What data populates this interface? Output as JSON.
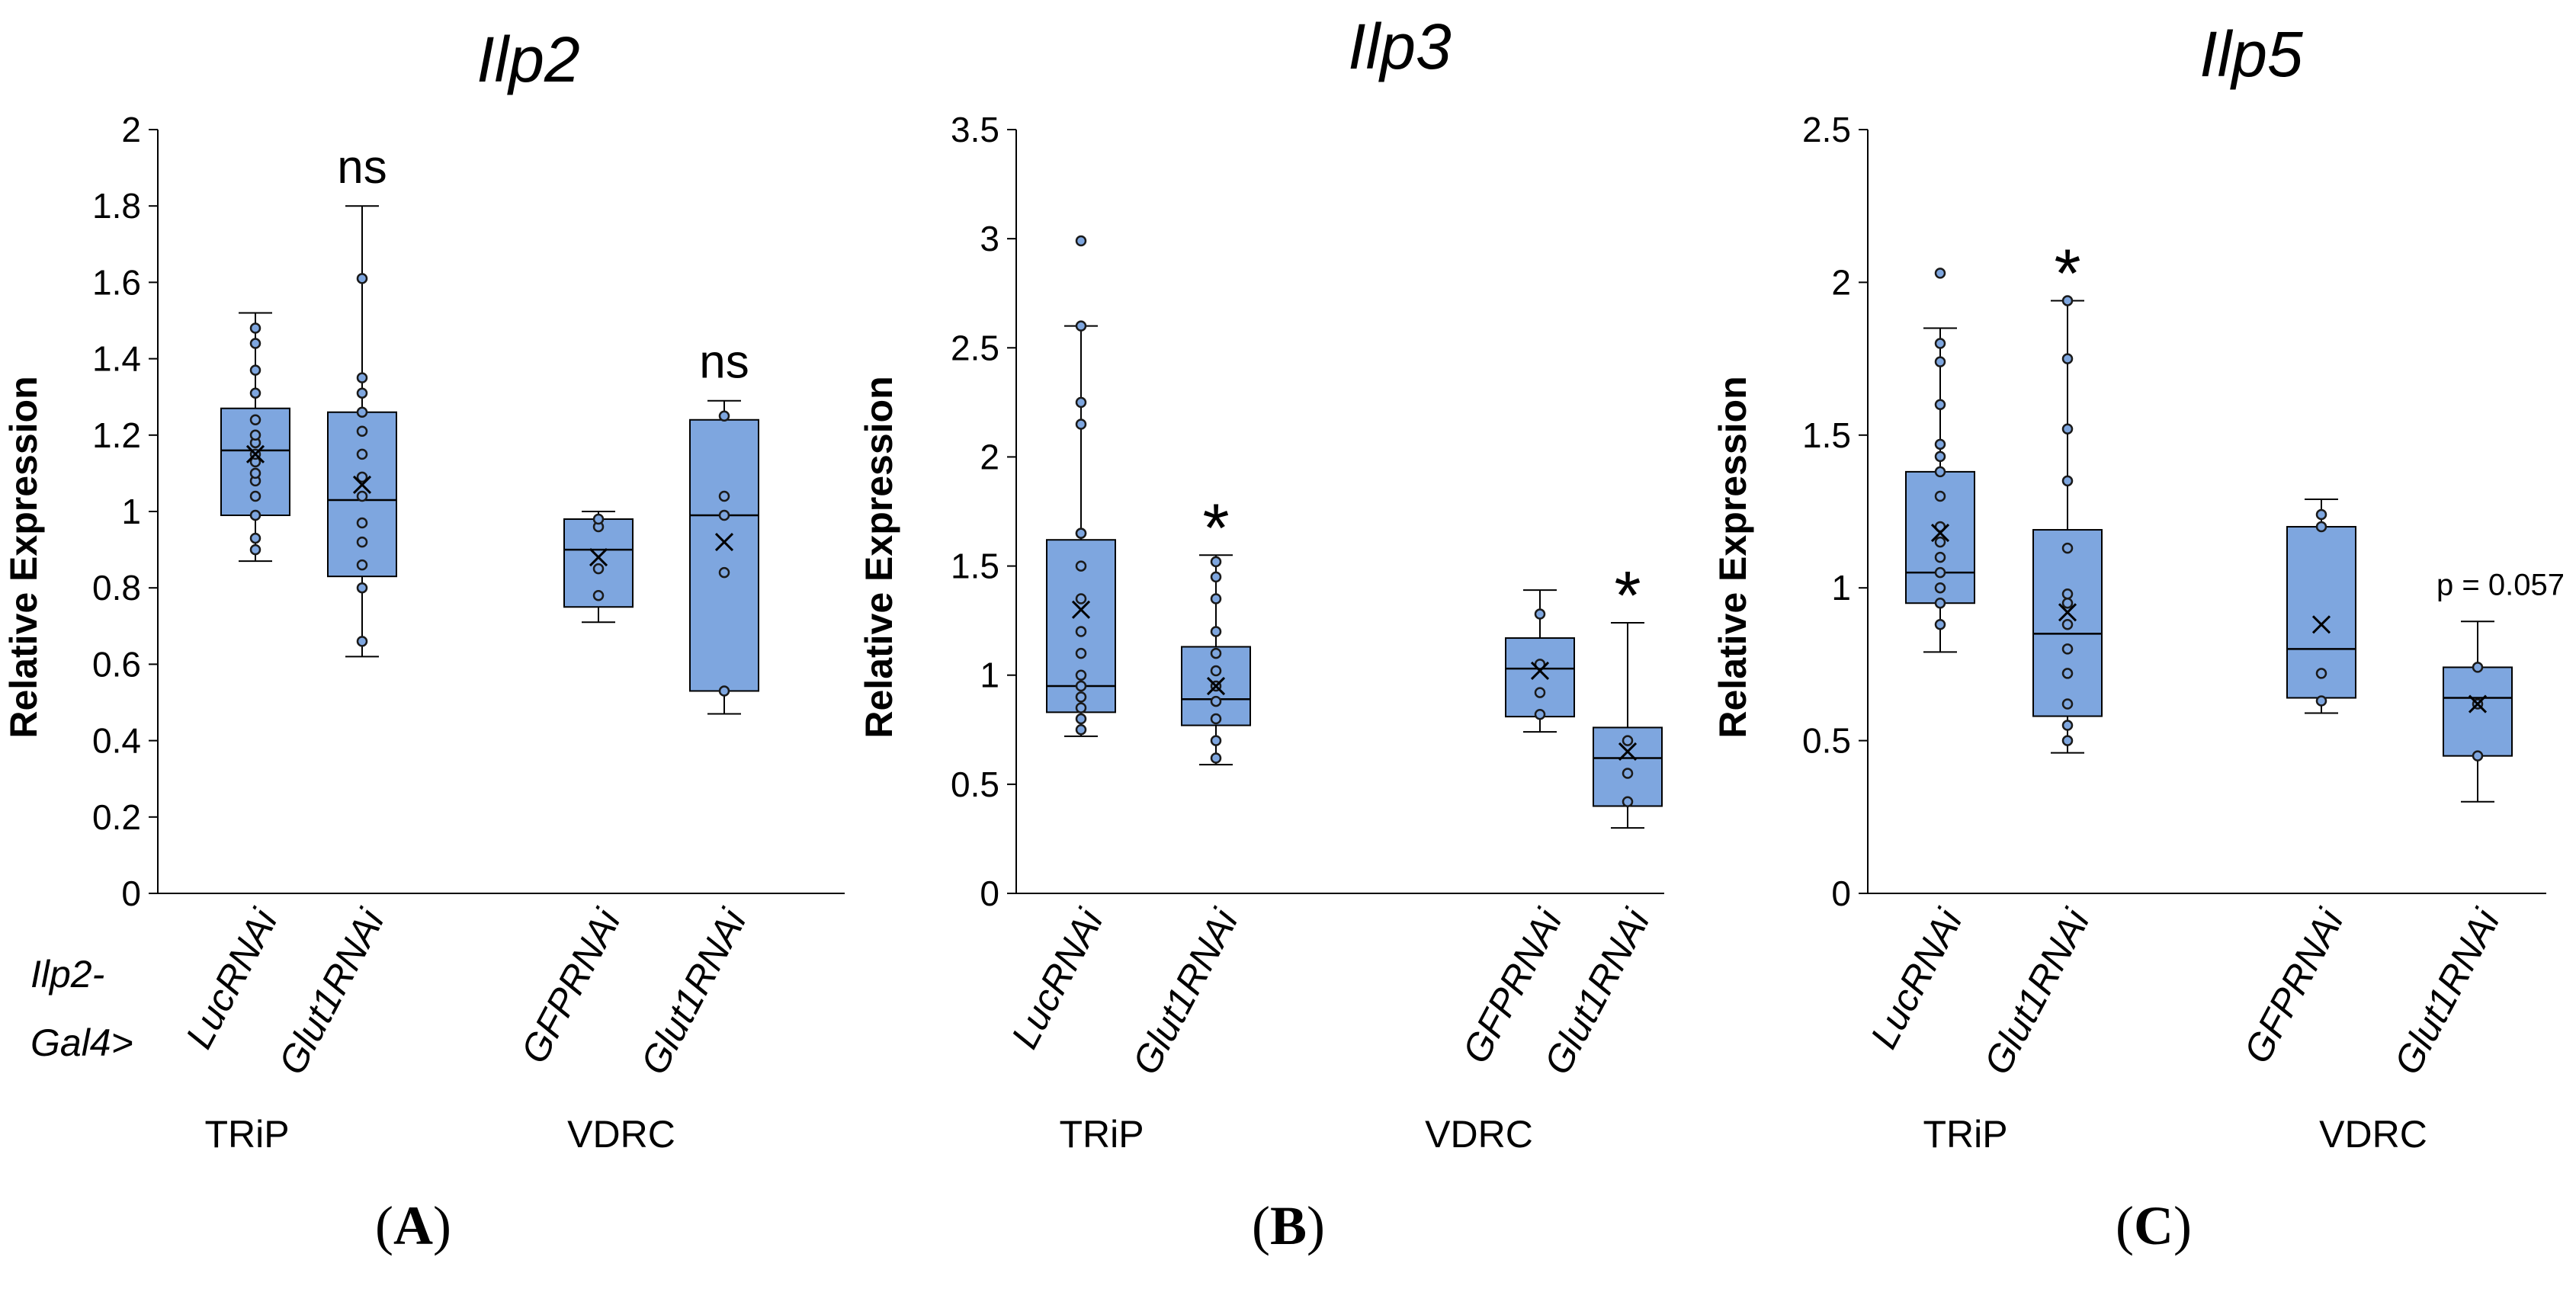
{
  "driver_label": [
    "Ilp2-",
    "Gal4>"
  ],
  "chart_data": [
    {
      "type": "box",
      "title": "Ilp2",
      "panel_label": "A",
      "ylabel": "Relative Expression",
      "ylim": [
        0,
        2
      ],
      "yticks": [
        0,
        0.2,
        0.4,
        0.6,
        0.8,
        1,
        1.2,
        1.4,
        1.6,
        1.8,
        2
      ],
      "ytick_labels": [
        "0",
        "0.2",
        "0.4",
        "0.6",
        "0.8",
        "1",
        "1.2",
        "1.4",
        "1.6",
        "1.8",
        "2"
      ],
      "groups": [
        "TRiP",
        "VDRC"
      ],
      "categories": [
        "LucRNAi",
        "Glut1RNAi",
        "GFPRNAi",
        "Glut1RNAi"
      ],
      "boxes": [
        {
          "min": 0.87,
          "q1": 0.99,
          "median": 1.16,
          "q3": 1.27,
          "max": 1.52,
          "mean": 1.15,
          "points": [
            0.9,
            0.93,
            0.99,
            1.04,
            1.08,
            1.1,
            1.13,
            1.15,
            1.18,
            1.2,
            1.24,
            1.31,
            1.37,
            1.44,
            1.48
          ],
          "annotation": ""
        },
        {
          "min": 0.62,
          "q1": 0.83,
          "median": 1.03,
          "q3": 1.26,
          "max": 1.8,
          "mean": 1.07,
          "points": [
            0.66,
            0.8,
            0.86,
            0.92,
            0.97,
            1.04,
            1.09,
            1.15,
            1.21,
            1.26,
            1.31,
            1.35,
            1.61
          ],
          "annotation": "ns"
        },
        {
          "min": 0.71,
          "q1": 0.75,
          "median": 0.9,
          "q3": 0.98,
          "max": 1.0,
          "mean": 0.88,
          "points": [
            0.78,
            0.85,
            0.96,
            0.98
          ],
          "annotation": ""
        },
        {
          "min": 0.47,
          "q1": 0.53,
          "median": 0.99,
          "q3": 1.24,
          "max": 1.29,
          "mean": 0.92,
          "points": [
            0.53,
            0.84,
            0.99,
            1.04,
            1.25
          ],
          "annotation": "ns"
        }
      ]
    },
    {
      "type": "box",
      "title": "Ilp3",
      "panel_label": "B",
      "ylabel": "Relative Expression",
      "ylim": [
        0,
        3.5
      ],
      "yticks": [
        0,
        0.5,
        1,
        1.5,
        2,
        2.5,
        3,
        3.5
      ],
      "ytick_labels": [
        "0",
        "0.5",
        "1",
        "1.5",
        "2",
        "2.5",
        "3",
        "3.5"
      ],
      "groups": [
        "TRiP",
        "VDRC"
      ],
      "categories": [
        "LucRNAi",
        "Glut1RNAi",
        "GFPRNAi",
        "Glut1RNAi"
      ],
      "boxes": [
        {
          "min": 0.72,
          "q1": 0.83,
          "median": 0.95,
          "q3": 1.62,
          "max": 2.6,
          "mean": 1.3,
          "points": [
            0.75,
            0.8,
            0.85,
            0.9,
            0.95,
            1.0,
            1.1,
            1.2,
            1.35,
            1.5,
            1.65,
            1.65,
            2.15,
            2.25,
            2.6,
            2.99
          ],
          "annotation": ""
        },
        {
          "min": 0.59,
          "q1": 0.77,
          "median": 0.89,
          "q3": 1.13,
          "max": 1.55,
          "mean": 0.95,
          "points": [
            0.62,
            0.7,
            0.8,
            0.88,
            0.95,
            1.02,
            1.1,
            1.2,
            1.35,
            1.45,
            1.52
          ],
          "annotation": "*"
        },
        {
          "min": 0.74,
          "q1": 0.81,
          "median": 1.03,
          "q3": 1.17,
          "max": 1.39,
          "mean": 1.02,
          "points": [
            0.82,
            0.92,
            1.05,
            1.28
          ],
          "annotation": ""
        },
        {
          "min": 0.3,
          "q1": 0.4,
          "median": 0.62,
          "q3": 0.76,
          "max": 1.24,
          "mean": 0.65,
          "points": [
            0.42,
            0.55,
            0.7
          ],
          "annotation": "*"
        }
      ]
    },
    {
      "type": "box",
      "title": "Ilp5",
      "panel_label": "C",
      "ylabel": "Relative Expression",
      "ylim": [
        0,
        2.5
      ],
      "yticks": [
        0,
        0.5,
        1,
        1.5,
        2,
        2.5
      ],
      "ytick_labels": [
        "0",
        "0.5",
        "1",
        "1.5",
        "2",
        "2.5"
      ],
      "groups": [
        "TRiP",
        "VDRC"
      ],
      "categories": [
        "LucRNAi",
        "Glut1RNAi",
        "GFPRNAi",
        "Glut1RNAi"
      ],
      "boxes": [
        {
          "min": 0.79,
          "q1": 0.95,
          "median": 1.05,
          "q3": 1.38,
          "max": 1.85,
          "mean": 1.18,
          "points": [
            0.88,
            0.95,
            1.0,
            1.05,
            1.1,
            1.15,
            1.2,
            1.3,
            1.38,
            1.43,
            1.47,
            1.6,
            1.74,
            1.8,
            2.03
          ],
          "annotation": ""
        },
        {
          "min": 0.46,
          "q1": 0.58,
          "median": 0.85,
          "q3": 1.19,
          "max": 1.94,
          "mean": 0.92,
          "points": [
            0.5,
            0.55,
            0.62,
            0.72,
            0.8,
            0.88,
            0.95,
            0.98,
            1.13,
            1.35,
            1.52,
            1.75,
            1.94
          ],
          "annotation": "*"
        },
        {
          "min": 0.59,
          "q1": 0.64,
          "median": 0.8,
          "q3": 1.2,
          "max": 1.29,
          "mean": 0.88,
          "points": [
            0.63,
            0.72,
            1.2,
            1.24
          ],
          "annotation": ""
        },
        {
          "min": 0.3,
          "q1": 0.45,
          "median": 0.64,
          "q3": 0.74,
          "max": 0.89,
          "mean": 0.62,
          "points": [
            0.45,
            0.62,
            0.74
          ],
          "annotation": "p = 0.057"
        }
      ]
    }
  ],
  "colors": {
    "box_fill": "#7ea6df",
    "line": "#000000"
  }
}
